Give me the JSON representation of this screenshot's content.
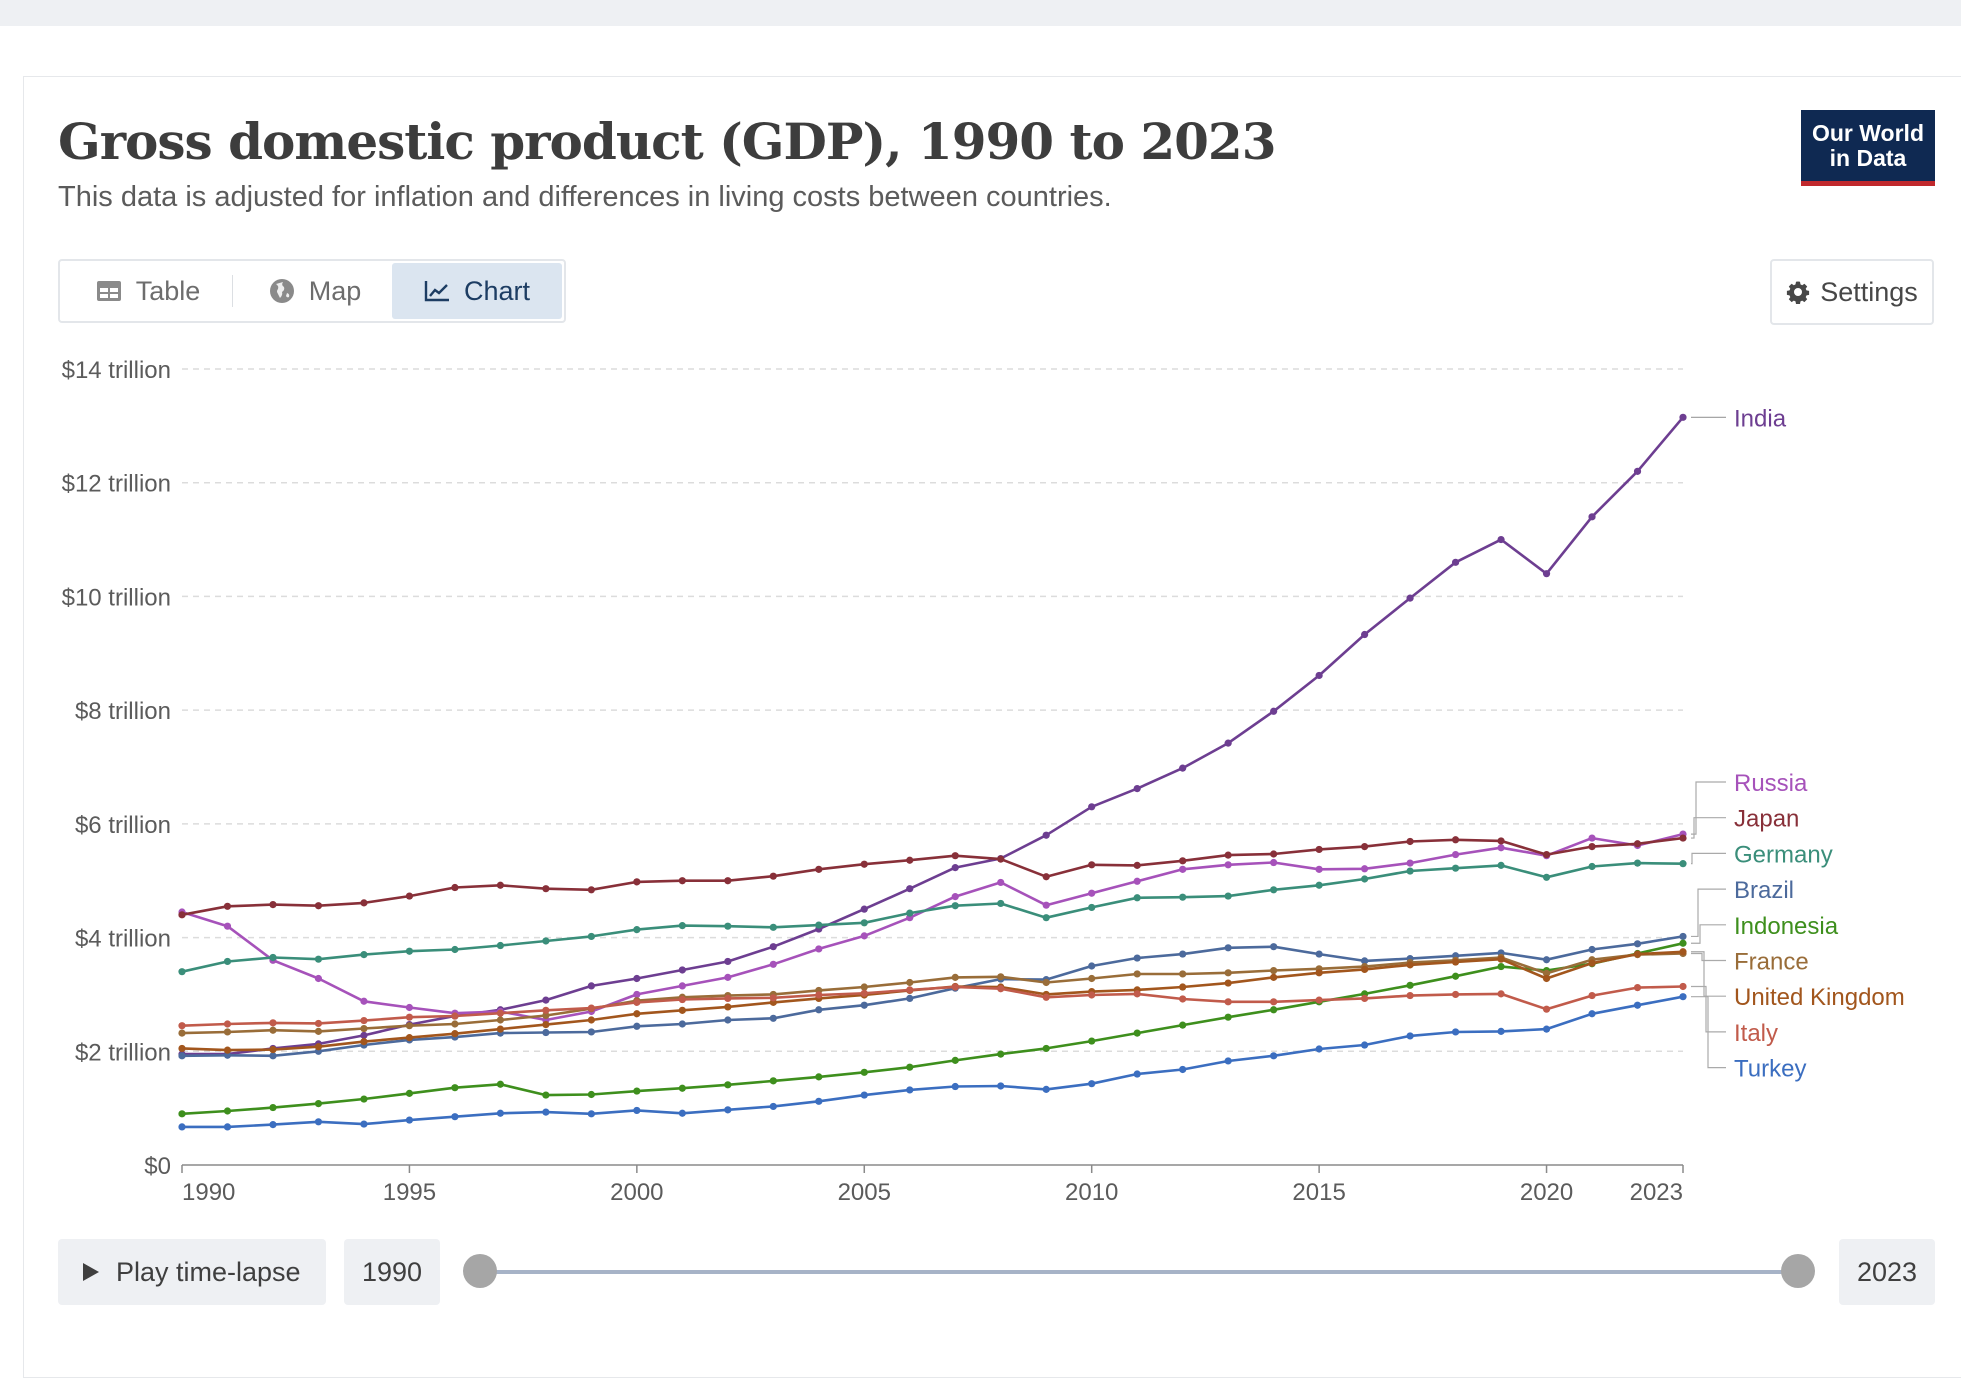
{
  "header": {
    "title": "Gross domestic product (GDP), 1990 to 2023",
    "subtitle": "This data is adjusted for inflation and differences in living costs between countries.",
    "logo_line1": "Our World",
    "logo_line2": "in Data"
  },
  "tabs": [
    {
      "label": "Table",
      "icon": "table-icon",
      "active": false
    },
    {
      "label": "Map",
      "icon": "globe-icon",
      "active": false
    },
    {
      "label": "Chart",
      "icon": "line-chart-icon",
      "active": true
    }
  ],
  "settings_label": "Settings",
  "controls": {
    "play_label": "Play time-lapse",
    "start_year": "1990",
    "end_year": "2023"
  },
  "chart_data": {
    "type": "line",
    "ylim": [
      0,
      14
    ],
    "yticks": [
      {
        "value": 0,
        "label": "$0"
      },
      {
        "value": 2,
        "label": "$2 trillion"
      },
      {
        "value": 4,
        "label": "$4 trillion"
      },
      {
        "value": 6,
        "label": "$6 trillion"
      },
      {
        "value": 8,
        "label": "$8 trillion"
      },
      {
        "value": 10,
        "label": "$10 trillion"
      },
      {
        "value": 12,
        "label": "$12 trillion"
      },
      {
        "value": 14,
        "label": "$14 trillion"
      }
    ],
    "xlim": [
      1990,
      2023
    ],
    "xticks": [
      1990,
      1995,
      2000,
      2005,
      2010,
      2015,
      2020,
      2023
    ],
    "x": [
      1990,
      1991,
      1992,
      1993,
      1994,
      1995,
      1996,
      1997,
      1998,
      1999,
      2000,
      2001,
      2002,
      2003,
      2004,
      2005,
      2006,
      2007,
      2008,
      2009,
      2010,
      2011,
      2012,
      2013,
      2014,
      2015,
      2016,
      2017,
      2018,
      2019,
      2020,
      2021,
      2022,
      2023
    ],
    "series": [
      {
        "name": "India",
        "color": "#6d3e91",
        "values": [
          1.95,
          1.95,
          2.05,
          2.13,
          2.28,
          2.47,
          2.62,
          2.73,
          2.9,
          3.15,
          3.28,
          3.43,
          3.58,
          3.84,
          4.15,
          4.5,
          4.86,
          5.23,
          5.39,
          5.8,
          6.3,
          6.62,
          6.98,
          7.42,
          7.98,
          8.61,
          9.33,
          9.97,
          10.6,
          11.0,
          10.4,
          11.4,
          12.2,
          13.15
        ]
      },
      {
        "name": "Russia",
        "color": "#a652ba",
        "values": [
          4.45,
          4.2,
          3.6,
          3.28,
          2.88,
          2.77,
          2.67,
          2.7,
          2.55,
          2.7,
          3.0,
          3.15,
          3.3,
          3.53,
          3.8,
          4.03,
          4.35,
          4.72,
          4.97,
          4.57,
          4.78,
          4.99,
          5.2,
          5.28,
          5.32,
          5.2,
          5.21,
          5.31,
          5.46,
          5.58,
          5.44,
          5.75,
          5.62,
          5.82
        ]
      },
      {
        "name": "Japan",
        "color": "#883039",
        "values": [
          4.4,
          4.55,
          4.58,
          4.56,
          4.61,
          4.73,
          4.88,
          4.92,
          4.86,
          4.84,
          4.98,
          5.0,
          5.0,
          5.08,
          5.2,
          5.29,
          5.36,
          5.44,
          5.38,
          5.07,
          5.28,
          5.27,
          5.35,
          5.45,
          5.47,
          5.55,
          5.6,
          5.69,
          5.72,
          5.7,
          5.46,
          5.6,
          5.65,
          5.75
        ]
      },
      {
        "name": "Germany",
        "color": "#3a8e7a",
        "values": [
          3.4,
          3.58,
          3.65,
          3.62,
          3.7,
          3.76,
          3.79,
          3.86,
          3.94,
          4.02,
          4.14,
          4.21,
          4.2,
          4.18,
          4.22,
          4.26,
          4.43,
          4.56,
          4.6,
          4.35,
          4.53,
          4.7,
          4.71,
          4.73,
          4.84,
          4.92,
          5.03,
          5.17,
          5.22,
          5.27,
          5.06,
          5.25,
          5.31,
          5.3
        ]
      },
      {
        "name": "Brazil",
        "color": "#4c6a9c",
        "values": [
          1.92,
          1.93,
          1.92,
          2.0,
          2.11,
          2.2,
          2.25,
          2.32,
          2.33,
          2.34,
          2.44,
          2.48,
          2.55,
          2.58,
          2.73,
          2.81,
          2.93,
          3.11,
          3.27,
          3.26,
          3.5,
          3.64,
          3.71,
          3.82,
          3.84,
          3.71,
          3.59,
          3.63,
          3.68,
          3.73,
          3.61,
          3.79,
          3.89,
          4.02
        ]
      },
      {
        "name": "Indonesia",
        "color": "#3e8f1d",
        "values": [
          0.9,
          0.95,
          1.01,
          1.08,
          1.16,
          1.26,
          1.36,
          1.42,
          1.23,
          1.24,
          1.3,
          1.35,
          1.41,
          1.48,
          1.55,
          1.63,
          1.72,
          1.84,
          1.95,
          2.05,
          2.18,
          2.32,
          2.46,
          2.6,
          2.73,
          2.87,
          3.01,
          3.16,
          3.32,
          3.49,
          3.42,
          3.54,
          3.72,
          3.9
        ]
      },
      {
        "name": "France",
        "color": "#996d39",
        "values": [
          2.32,
          2.34,
          2.37,
          2.35,
          2.4,
          2.45,
          2.48,
          2.55,
          2.63,
          2.75,
          2.89,
          2.95,
          2.98,
          3.0,
          3.07,
          3.13,
          3.21,
          3.3,
          3.31,
          3.21,
          3.28,
          3.36,
          3.36,
          3.38,
          3.42,
          3.45,
          3.49,
          3.56,
          3.6,
          3.65,
          3.37,
          3.61,
          3.7,
          3.72
        ]
      },
      {
        "name": "United Kingdom",
        "color": "#a2561d",
        "values": [
          2.05,
          2.02,
          2.03,
          2.08,
          2.17,
          2.24,
          2.31,
          2.39,
          2.47,
          2.55,
          2.66,
          2.72,
          2.78,
          2.86,
          2.93,
          2.99,
          3.07,
          3.14,
          3.13,
          3.0,
          3.05,
          3.08,
          3.13,
          3.2,
          3.3,
          3.38,
          3.44,
          3.52,
          3.57,
          3.62,
          3.28,
          3.55,
          3.71,
          3.75
        ]
      },
      {
        "name": "Italy",
        "color": "#c15b4b",
        "values": [
          2.45,
          2.48,
          2.5,
          2.49,
          2.54,
          2.6,
          2.62,
          2.67,
          2.72,
          2.76,
          2.86,
          2.91,
          2.93,
          2.94,
          2.99,
          3.02,
          3.08,
          3.13,
          3.1,
          2.95,
          2.99,
          3.01,
          2.92,
          2.87,
          2.87,
          2.9,
          2.93,
          2.98,
          3.0,
          3.01,
          2.74,
          2.98,
          3.12,
          3.14
        ]
      },
      {
        "name": "Turkey",
        "color": "#3b6ec0",
        "values": [
          0.67,
          0.67,
          0.71,
          0.76,
          0.72,
          0.79,
          0.85,
          0.91,
          0.93,
          0.9,
          0.96,
          0.91,
          0.97,
          1.03,
          1.12,
          1.23,
          1.32,
          1.38,
          1.39,
          1.33,
          1.43,
          1.6,
          1.68,
          1.83,
          1.92,
          2.04,
          2.11,
          2.27,
          2.34,
          2.35,
          2.39,
          2.66,
          2.81,
          2.96
        ]
      }
    ],
    "labels_order": [
      "India",
      "Russia",
      "Japan",
      "Germany",
      "Brazil",
      "Indonesia",
      "France",
      "United Kingdom",
      "Italy",
      "Turkey"
    ]
  }
}
